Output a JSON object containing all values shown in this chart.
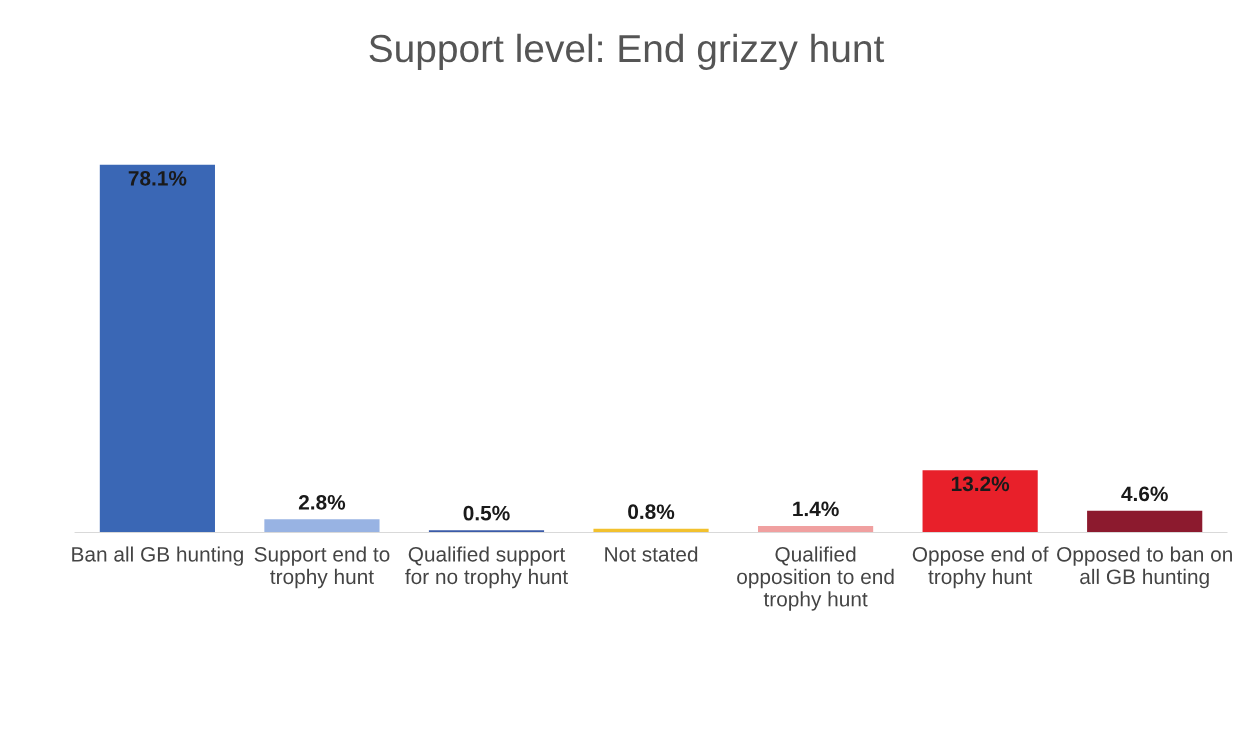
{
  "chart_data": {
    "type": "bar",
    "title": "Support level: End grizzy hunt",
    "categories": [
      "Ban all GB hunting",
      "Support end to trophy hunt",
      "Qualified support for no trophy hunt",
      "Not stated",
      "Qualified opposition to end trophy hunt",
      "Oppose end of trophy hunt",
      "Opposed to ban on all GB hunting"
    ],
    "values": [
      78.1,
      2.8,
      0.5,
      0.8,
      1.4,
      13.2,
      4.6
    ],
    "colors": [
      "#3a67b5",
      "#98b3e3",
      "#3b5ba8",
      "#f2c12e",
      "#f0a0a0",
      "#e8202a",
      "#8c1a2e"
    ],
    "value_labels": [
      "78.1%",
      "2.8%",
      "0.5%",
      "0.8%",
      "1.4%",
      "13.2%",
      "4.6%"
    ],
    "tick_labels": "x",
    "grid": false,
    "legend": false
  }
}
